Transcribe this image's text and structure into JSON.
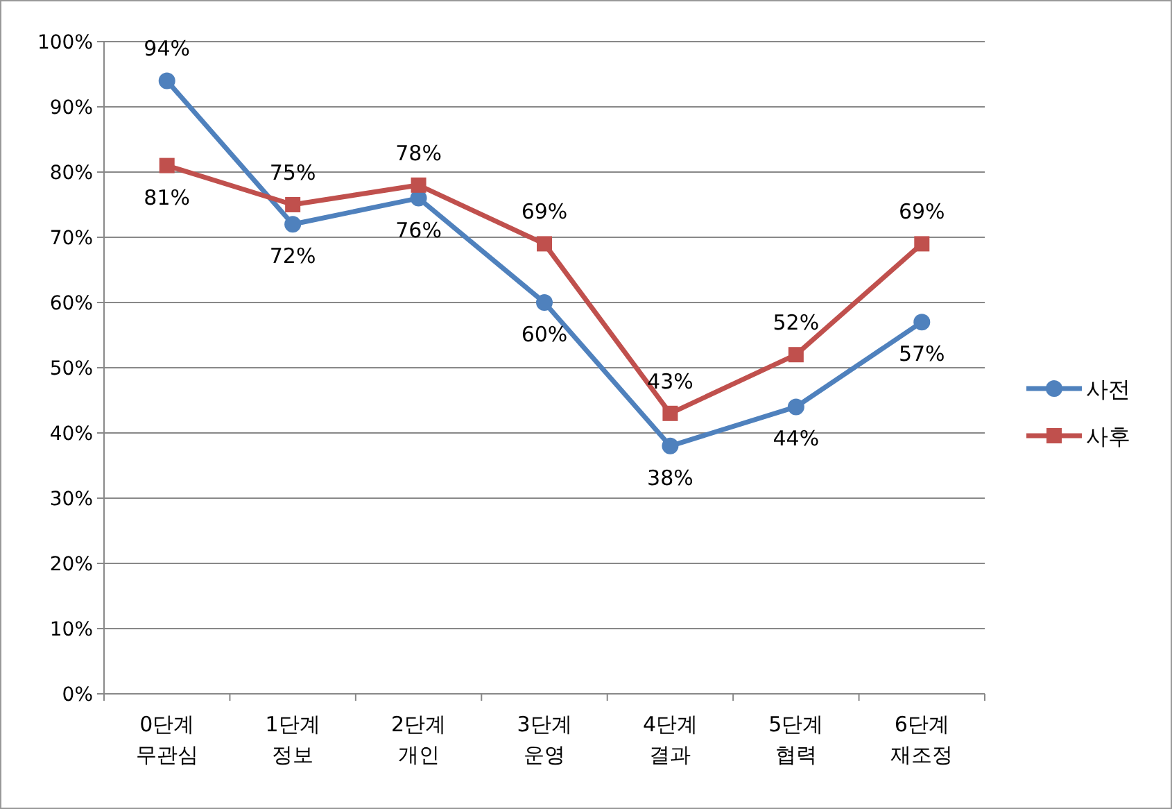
{
  "chart_data": {
    "type": "line",
    "categories": [
      "0단계\n무관심",
      "1단계\n정보",
      "2단계\n개인",
      "3단계\n운영",
      "4단계\n결과",
      "5단계\n협력",
      "6단계\n재조정"
    ],
    "series": [
      {
        "name": "사전",
        "color": "#4f81bd",
        "marker": "circle",
        "values": [
          94,
          72,
          76,
          60,
          38,
          44,
          57
        ],
        "value_labels": [
          "94%",
          "72%",
          "76%",
          "60%",
          "38%",
          "44%",
          "57%"
        ]
      },
      {
        "name": "사후",
        "color": "#c0504d",
        "marker": "square",
        "values": [
          81,
          75,
          78,
          69,
          43,
          52,
          69
        ],
        "value_labels": [
          "81%",
          "75%",
          "78%",
          "69%",
          "43%",
          "52%",
          "69%"
        ]
      }
    ],
    "ylim": [
      0,
      100
    ],
    "yticks": [
      {
        "value": 0,
        "label": "0%"
      },
      {
        "value": 10,
        "label": "10%"
      },
      {
        "value": 20,
        "label": "20%"
      },
      {
        "value": 30,
        "label": "30%"
      },
      {
        "value": 40,
        "label": "40%"
      },
      {
        "value": 50,
        "label": "50%"
      },
      {
        "value": 60,
        "label": "60%"
      },
      {
        "value": 70,
        "label": "70%"
      },
      {
        "value": 80,
        "label": "80%"
      },
      {
        "value": 90,
        "label": "90%"
      },
      {
        "value": 100,
        "label": "100%"
      }
    ],
    "grid": "y",
    "legend": "right"
  }
}
